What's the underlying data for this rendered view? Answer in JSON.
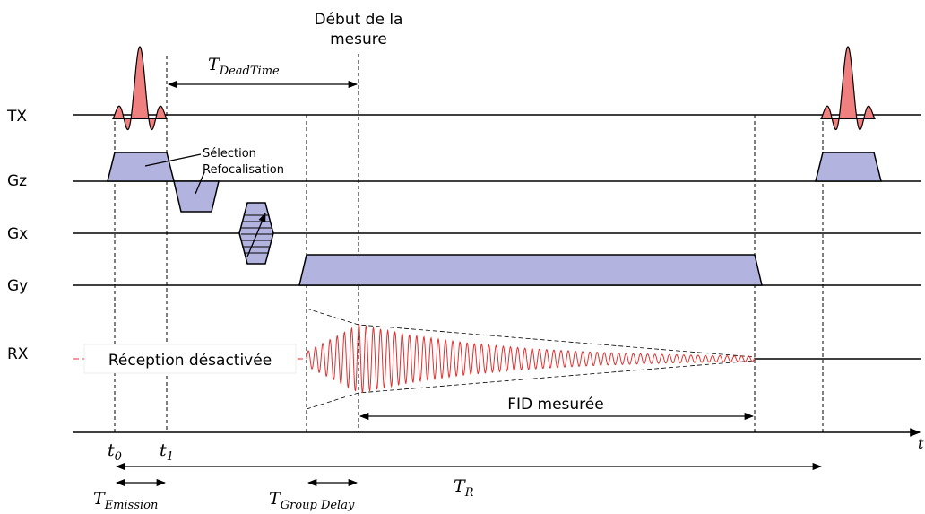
{
  "header": {
    "start_line1": "Début de la",
    "start_line2": "mesure"
  },
  "tracks": {
    "tx": "TX",
    "gz": "Gz",
    "gx": "Gx",
    "gy": "Gy",
    "rx": "RX"
  },
  "annotations": {
    "selection": "Sélection",
    "refocalisation": "Refocalisation",
    "reception_off": "Réception désactivée",
    "fid_measured": "FID mesurée"
  },
  "times": {
    "deadtime_base": "T",
    "deadtime_sub": "DeadTime",
    "t0_base": "t",
    "t0_sub": "0",
    "t1_base": "t",
    "t1_sub": "1",
    "emission_base": "T",
    "emission_sub": "Emission",
    "group_base": "T",
    "group_sub": "Group Delay",
    "tr_base": "T",
    "tr_sub": "R",
    "axis_end": "t"
  },
  "colors": {
    "rf_pulse": "#f08080",
    "gradient": "#b3b3e0",
    "signal": "#e03030",
    "line": "#000000"
  }
}
